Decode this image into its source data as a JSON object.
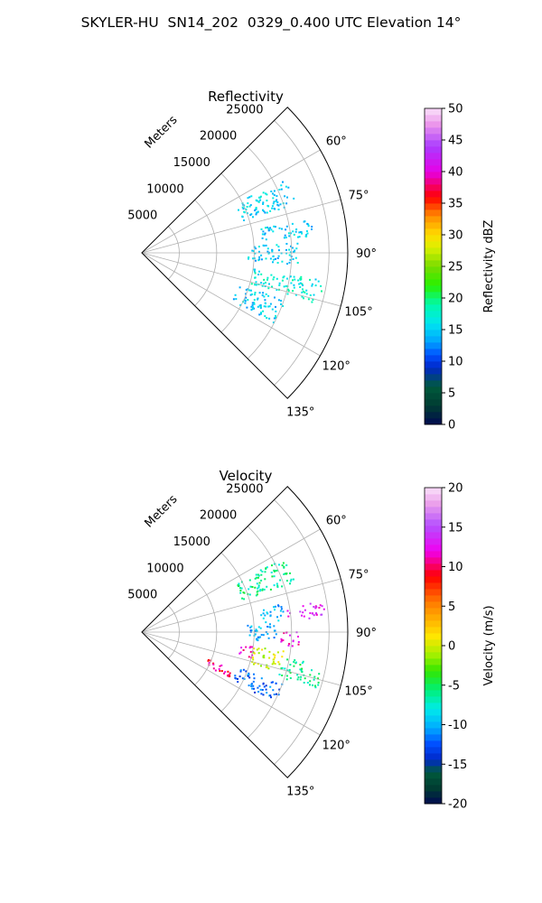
{
  "figure": {
    "title": "SKYLER-HU  SN14_202  0329_0.400 UTC Elevation 14°"
  },
  "chart_data": [
    {
      "type": "heatmap",
      "subtype": "polar-sector-ppi",
      "title": "Reflectivity",
      "radial_label": "Meters",
      "radial_ticks": [
        "5000",
        "10000",
        "15000",
        "20000",
        "25000"
      ],
      "rmax": 27500,
      "theta_range_deg": [
        45,
        135
      ],
      "theta_ticks": [
        "60°",
        "75°",
        "90°",
        "105°",
        "120°",
        "135°"
      ],
      "colorbar": {
        "label": "Reflectivity dBZ",
        "range": [
          0,
          50
        ],
        "ticks": [
          "0",
          "5",
          "10",
          "15",
          "20",
          "25",
          "30",
          "35",
          "40",
          "45",
          "50"
        ]
      },
      "echo_regions": [
        {
          "theta": [
            62,
            72
          ],
          "r": [
            14000,
            21500
          ],
          "value": 15
        },
        {
          "theta": [
            78,
            84
          ],
          "r": [
            16000,
            23500
          ],
          "value": 15
        },
        {
          "theta": [
            86,
            94
          ],
          "r": [
            14000,
            21000
          ],
          "value": 15
        },
        {
          "theta": [
            98,
            106
          ],
          "r": [
            15000,
            24500
          ],
          "value": 17
        },
        {
          "theta": [
            108,
            118
          ],
          "r": [
            13500,
            20000
          ],
          "value": 15
        }
      ]
    },
    {
      "type": "heatmap",
      "subtype": "polar-sector-ppi",
      "title": "Velocity",
      "radial_label": "Meters",
      "radial_ticks": [
        "5000",
        "10000",
        "15000",
        "20000",
        "25000"
      ],
      "rmax": 27500,
      "theta_range_deg": [
        45,
        135
      ],
      "theta_ticks": [
        "60°",
        "75°",
        "90°",
        "105°",
        "120°",
        "135°"
      ],
      "colorbar": {
        "label": "Velocity (m/s)",
        "range": [
          -20,
          20
        ],
        "ticks": [
          "-20",
          "-15",
          "-10",
          "-5",
          "0",
          "5",
          "10",
          "15",
          "20"
        ]
      },
      "echo_regions": [
        {
          "theta": [
            62,
            72
          ],
          "r": [
            14000,
            21500
          ],
          "value": -6
        },
        {
          "theta": [
            78,
            85
          ],
          "r": [
            16000,
            19000
          ],
          "value": -10
        },
        {
          "theta": [
            80,
            85
          ],
          "r": [
            19500,
            24500
          ],
          "value": 13
        },
        {
          "theta": [
            86,
            94
          ],
          "r": [
            14000,
            18000
          ],
          "value": -10
        },
        {
          "theta": [
            89,
            95
          ],
          "r": [
            18500,
            21000
          ],
          "value": 12
        },
        {
          "theta": [
            97,
            103
          ],
          "r": [
            13000,
            15000
          ],
          "value": 12
        },
        {
          "theta": [
            97,
            106
          ],
          "r": [
            15000,
            19000
          ],
          "value": 0
        },
        {
          "theta": [
            100,
            108
          ],
          "r": [
            19000,
            24500
          ],
          "value": -6
        },
        {
          "theta": [
            110,
            118
          ],
          "r": [
            13500,
            20000
          ],
          "value": -12
        },
        {
          "theta": [
            112,
            118
          ],
          "r": [
            9500,
            13000
          ],
          "value": 10
        }
      ]
    }
  ]
}
